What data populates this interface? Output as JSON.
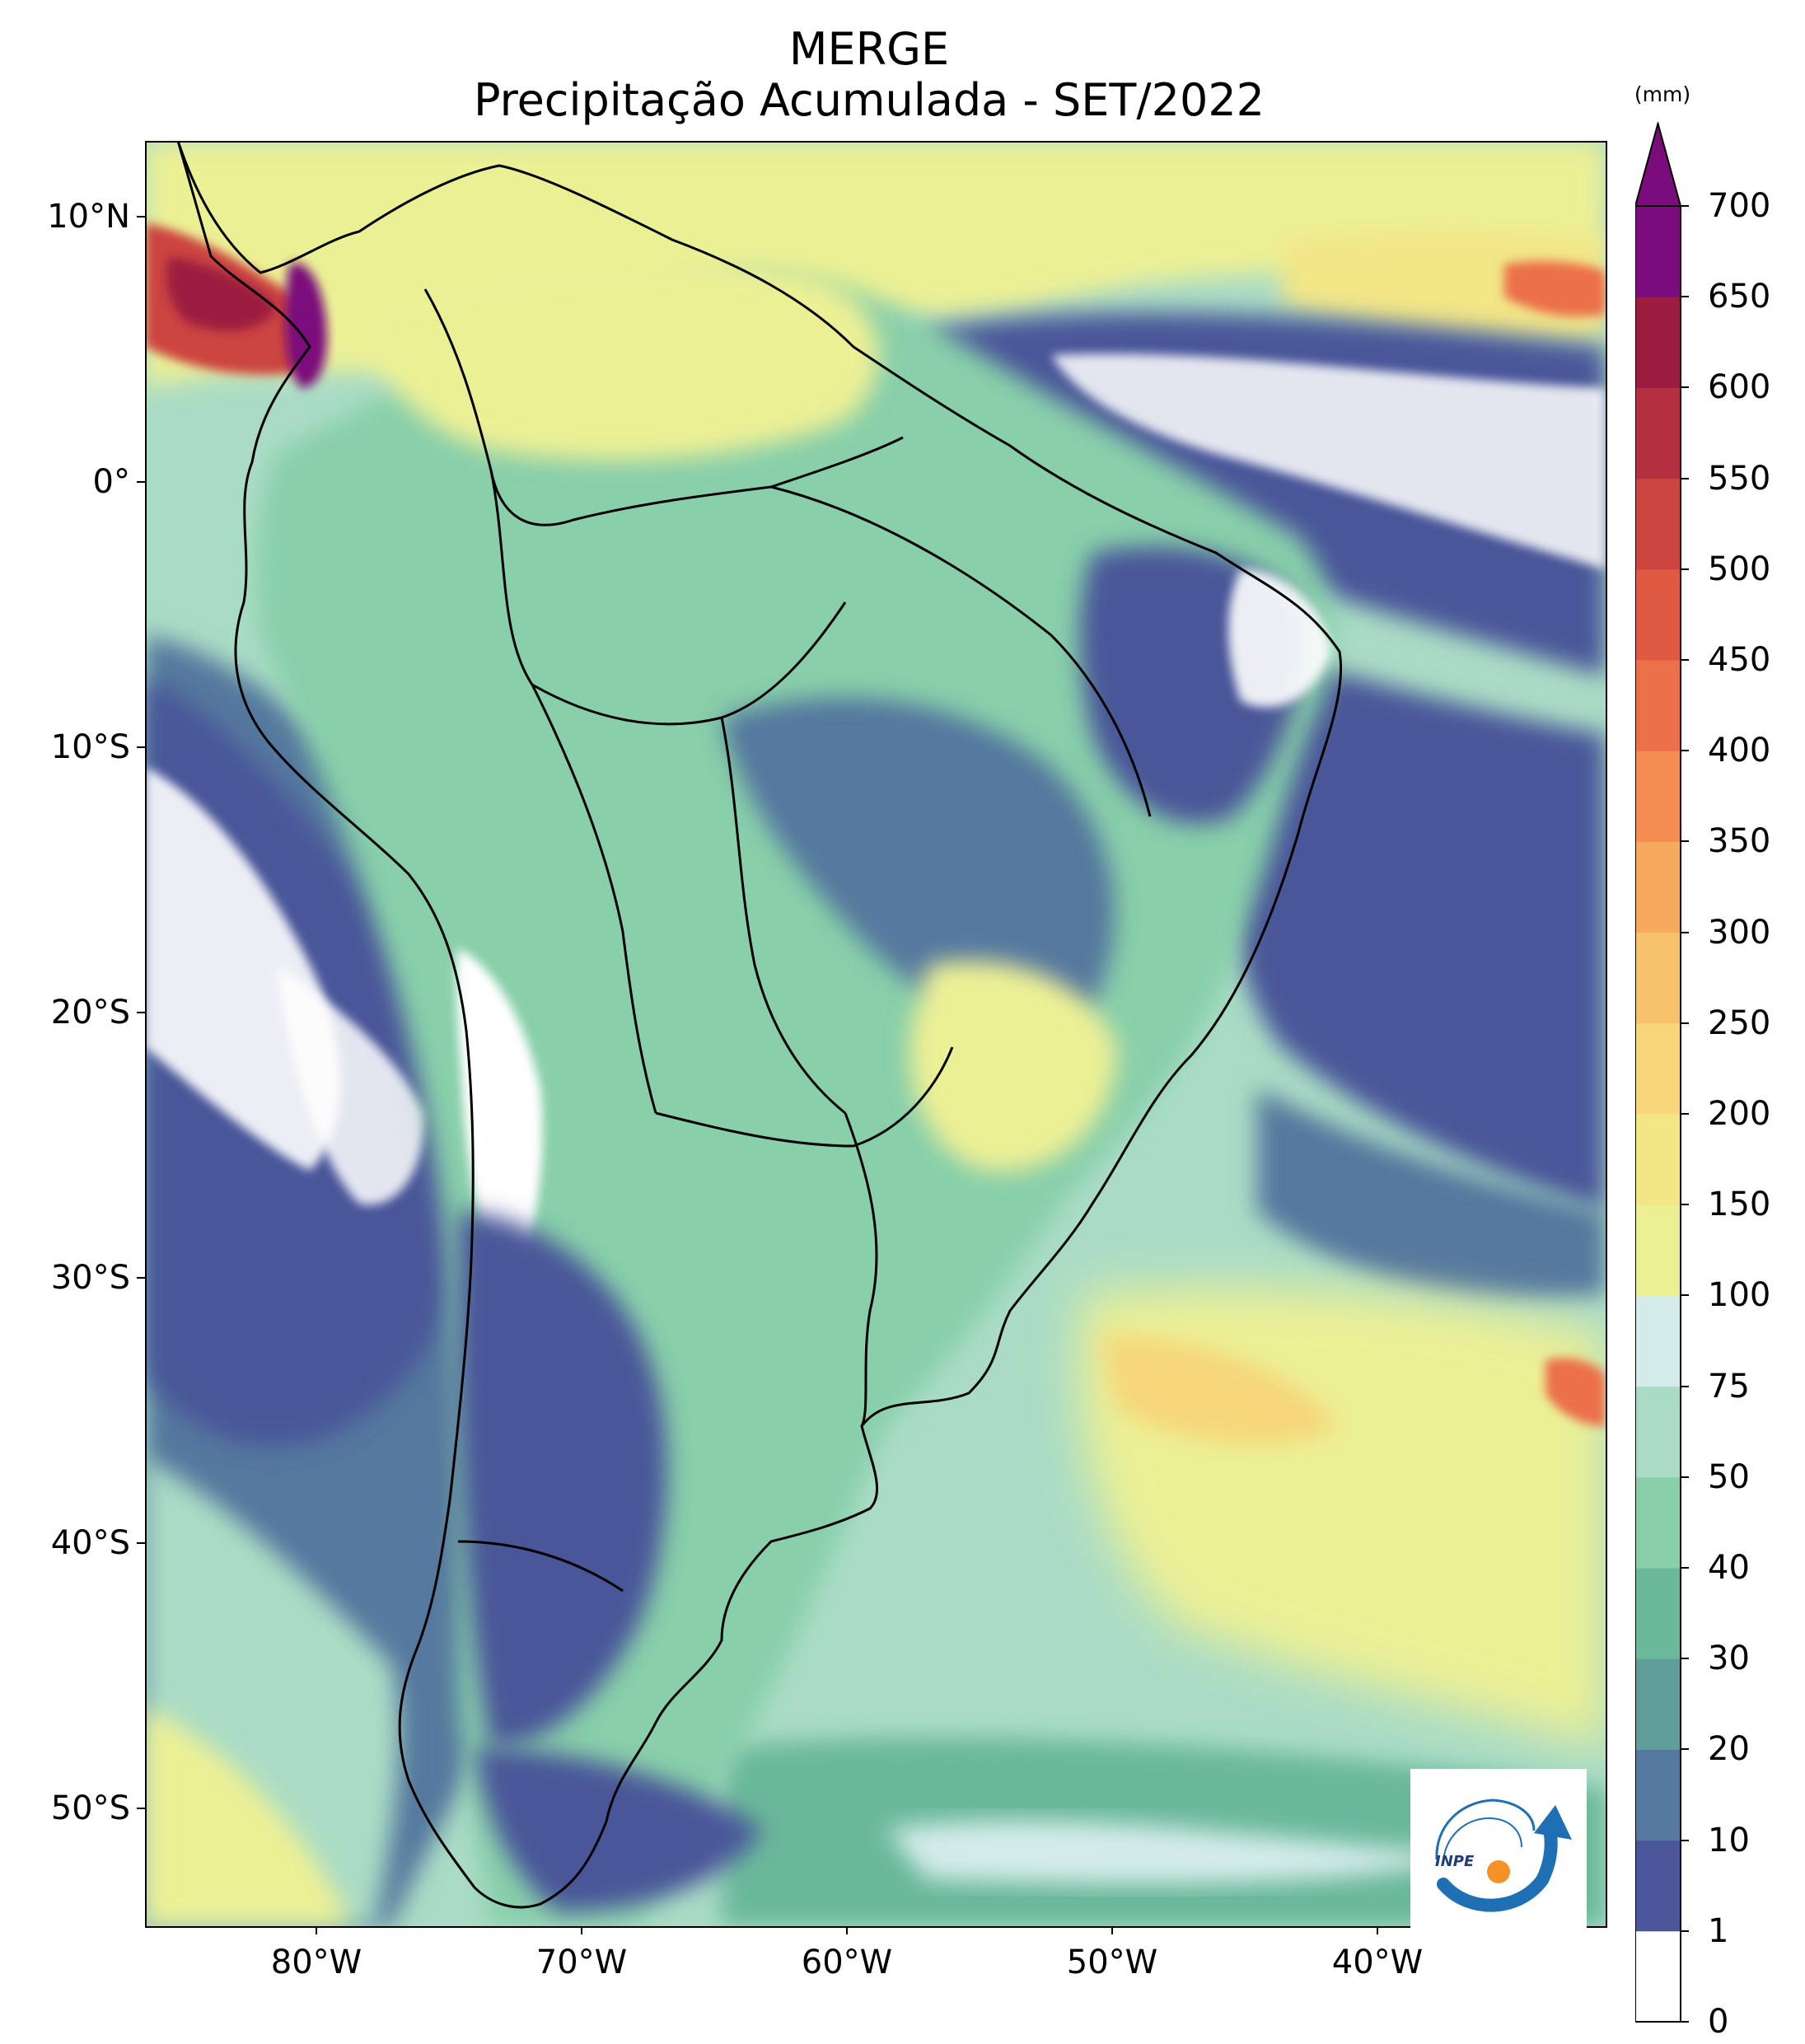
{
  "title": {
    "line1": "MERGE",
    "line2": "Precipitação Acumulada - SET/2022"
  },
  "colorbar": {
    "unit": "(mm)",
    "levels": [
      "0",
      "1",
      "10",
      "20",
      "30",
      "40",
      "50",
      "75",
      "100",
      "150",
      "200",
      "250",
      "300",
      "350",
      "400",
      "450",
      "500",
      "550",
      "600",
      "650",
      "700"
    ],
    "colors": [
      "#ffffff",
      "#4a5699",
      "#55789e",
      "#5f9e9b",
      "#6bb89b",
      "#88cfaa",
      "#aadcc5",
      "#d4ece9",
      "#ecf095",
      "#f2e687",
      "#f6d679",
      "#f8c26a",
      "#f7aa5e",
      "#f38d51",
      "#ec7049",
      "#e05a43",
      "#cc4541",
      "#b43041",
      "#9b1c3f",
      "#7b0c7c"
    ],
    "extend": "max"
  },
  "axes": {
    "lat_labels": [
      "10°N",
      "0°",
      "10°S",
      "20°S",
      "30°S",
      "40°S",
      "50°S"
    ],
    "lon_labels": [
      "80°W",
      "70°W",
      "60°W",
      "50°W",
      "40°W"
    ]
  },
  "logo": {
    "text": "INPE"
  }
}
